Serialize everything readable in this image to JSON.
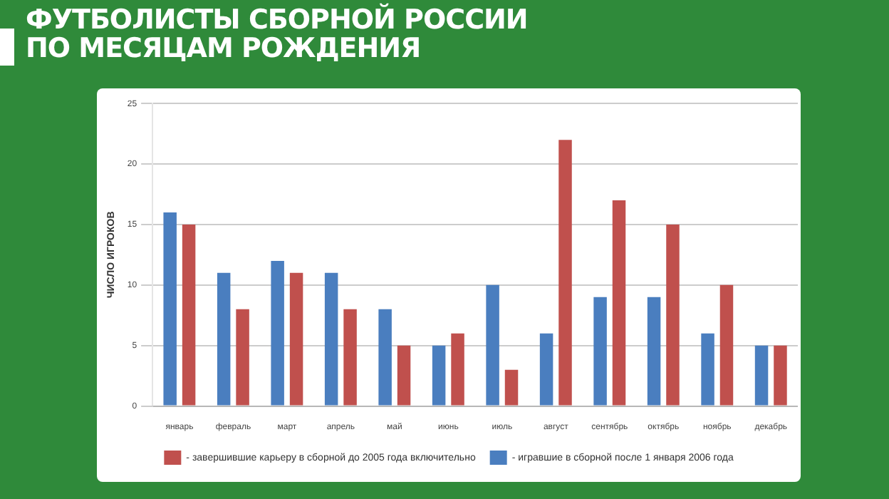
{
  "chart_data": {
    "type": "bar",
    "title": "ФУТБОЛИСТЫ СБОРНОЙ РОССИИ ПО МЕСЯЦАМ РОЖДЕНИЯ",
    "ylabel": "ЧИСЛО ИГРОКОВ",
    "categories": [
      "январь",
      "февраль",
      "март",
      "апрель",
      "май",
      "июнь",
      "июль",
      "август",
      "сентябрь",
      "октябрь",
      "ноябрь",
      "декабрь"
    ],
    "series": [
      {
        "name": "- игравшие в сборной после 1 января 2006 года",
        "color": "#4a7ebf",
        "values": [
          16,
          11,
          12,
          11,
          8,
          5,
          10,
          6,
          9,
          9,
          6,
          5
        ]
      },
      {
        "name": "- завершившие карьеру в сборной до 2005 года включительно",
        "color": "#c0504d",
        "values": [
          15,
          8,
          11,
          8,
          5,
          6,
          3,
          22,
          17,
          15,
          10,
          5
        ]
      }
    ],
    "ylim": [
      0,
      25
    ],
    "yticks": [
      0,
      5,
      10,
      15,
      20,
      25
    ],
    "grid": "y",
    "legend": "bottom"
  }
}
